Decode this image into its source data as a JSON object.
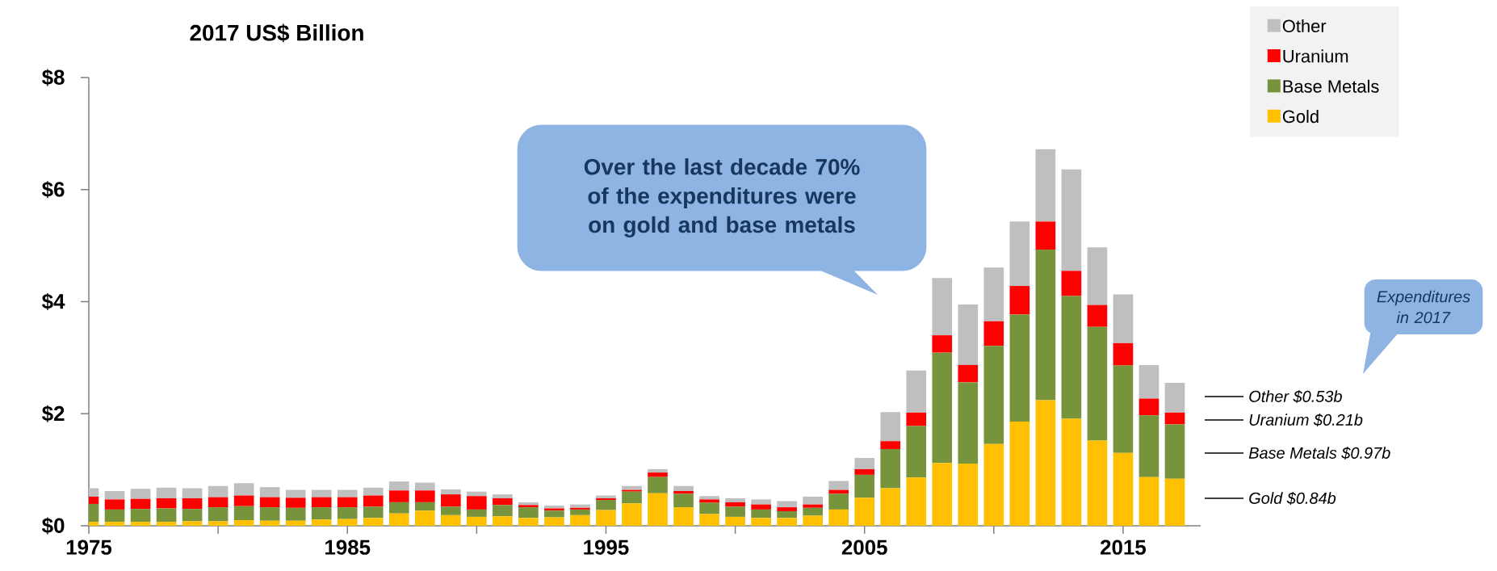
{
  "chart_data": {
    "type": "bar",
    "stacked": true,
    "title": "2017 US$ Billion",
    "x": [
      1975,
      1976,
      1977,
      1978,
      1979,
      1980,
      1981,
      1982,
      1983,
      1984,
      1985,
      1986,
      1987,
      1988,
      1989,
      1990,
      1991,
      1992,
      1993,
      1994,
      1995,
      1996,
      1997,
      1998,
      1999,
      2000,
      2001,
      2002,
      2003,
      2004,
      2005,
      2006,
      2007,
      2008,
      2009,
      2010,
      2011,
      2012,
      2013,
      2014,
      2015,
      2016,
      2017
    ],
    "series": [
      {
        "name": "Gold",
        "color": "#ffc000",
        "values": [
          0.07,
          0.07,
          0.07,
          0.07,
          0.08,
          0.08,
          0.1,
          0.09,
          0.09,
          0.11,
          0.12,
          0.14,
          0.22,
          0.27,
          0.19,
          0.16,
          0.17,
          0.14,
          0.15,
          0.19,
          0.28,
          0.4,
          0.58,
          0.33,
          0.21,
          0.16,
          0.14,
          0.14,
          0.18,
          0.29,
          0.5,
          0.67,
          0.86,
          1.12,
          1.11,
          1.46,
          1.86,
          2.24,
          1.91,
          1.52,
          1.3,
          0.87,
          0.84
        ]
      },
      {
        "name": "Base Metals",
        "color": "#77933c",
        "values": [
          0.32,
          0.22,
          0.23,
          0.24,
          0.22,
          0.25,
          0.25,
          0.24,
          0.23,
          0.22,
          0.21,
          0.2,
          0.2,
          0.15,
          0.15,
          0.13,
          0.2,
          0.19,
          0.12,
          0.1,
          0.18,
          0.21,
          0.29,
          0.24,
          0.2,
          0.18,
          0.15,
          0.12,
          0.14,
          0.28,
          0.41,
          0.7,
          0.92,
          1.97,
          1.45,
          1.75,
          1.91,
          2.69,
          2.19,
          2.03,
          1.56,
          1.1,
          0.97
        ]
      },
      {
        "name": "Uranium",
        "color": "#ff0000",
        "values": [
          0.13,
          0.18,
          0.18,
          0.18,
          0.19,
          0.18,
          0.19,
          0.18,
          0.18,
          0.18,
          0.18,
          0.2,
          0.21,
          0.21,
          0.22,
          0.24,
          0.12,
          0.04,
          0.04,
          0.03,
          0.03,
          0.03,
          0.08,
          0.05,
          0.06,
          0.08,
          0.09,
          0.07,
          0.06,
          0.07,
          0.1,
          0.14,
          0.24,
          0.31,
          0.31,
          0.44,
          0.51,
          0.5,
          0.45,
          0.39,
          0.4,
          0.3,
          0.21
        ]
      },
      {
        "name": "Other",
        "color": "#bfbfbf",
        "values": [
          0.15,
          0.15,
          0.18,
          0.19,
          0.18,
          0.2,
          0.22,
          0.18,
          0.14,
          0.13,
          0.13,
          0.14,
          0.16,
          0.14,
          0.09,
          0.08,
          0.07,
          0.05,
          0.05,
          0.06,
          0.05,
          0.07,
          0.06,
          0.09,
          0.06,
          0.07,
          0.09,
          0.11,
          0.14,
          0.16,
          0.2,
          0.52,
          0.75,
          1.02,
          1.08,
          0.96,
          1.15,
          1.29,
          1.81,
          1.03,
          0.87,
          0.6,
          0.53
        ]
      }
    ],
    "xlim": [
      1975,
      2018
    ],
    "xticks": [
      1975,
      {
        "value": 1980,
        "label": null
      },
      1985,
      {
        "value": 1990,
        "label": null
      },
      1995,
      {
        "value": 2000,
        "label": null
      },
      2005,
      {
        "value": 2010,
        "label": null
      },
      2015
    ],
    "ylim": [
      0,
      8
    ],
    "yticks": [
      {
        "value": 0,
        "label": "$0"
      },
      {
        "value": 2,
        "label": "$2"
      },
      {
        "value": 4,
        "label": "$4"
      },
      {
        "value": 6,
        "label": "$6"
      },
      {
        "value": 8,
        "label": "$8"
      }
    ],
    "legend": "top right",
    "annotations": [
      "Over the last decade 70% of the expenditures were on gold and base metals",
      "*Expenditures in 2017*",
      "*Other $0.53b*",
      "*Uranium $0.21b*",
      "*Base Metals $0.97b*",
      "*Gold $0.84b*"
    ]
  }
}
